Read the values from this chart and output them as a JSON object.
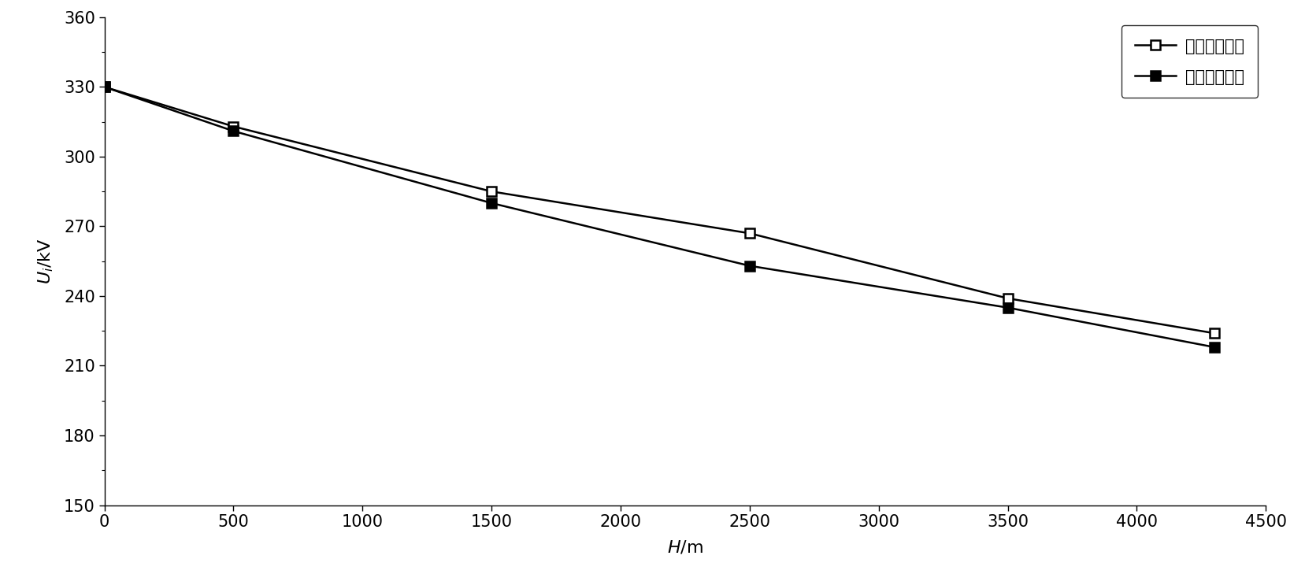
{
  "series1_x": [
    0,
    500,
    1500,
    2500,
    3500,
    4300
  ],
  "series1_y": [
    330,
    313,
    285,
    267,
    239,
    224
  ],
  "series2_x": [
    0,
    500,
    1500,
    2500,
    3500,
    4300
  ],
  "series2_y": [
    330,
    311,
    280,
    253,
    235,
    218
  ],
  "series1_label": "钟罩式防振锤",
  "series2_label": "音叉式防振锤",
  "xlabel_italic": "H",
  "xlabel_normal": "/m",
  "ylabel_italic": "U",
  "ylabel_sub": "i",
  "ylabel_normal": "/kV",
  "xlim": [
    0,
    4500
  ],
  "ylim": [
    150,
    360
  ],
  "yticks": [
    150,
    180,
    210,
    240,
    270,
    300,
    330,
    360
  ],
  "xticks": [
    0,
    500,
    1000,
    1500,
    2000,
    2500,
    3000,
    3500,
    4000,
    4500
  ],
  "line_color": "#000000",
  "marker_size": 8,
  "linewidth": 1.8,
  "figsize": [
    16.57,
    7.29
  ],
  "dpi": 100
}
